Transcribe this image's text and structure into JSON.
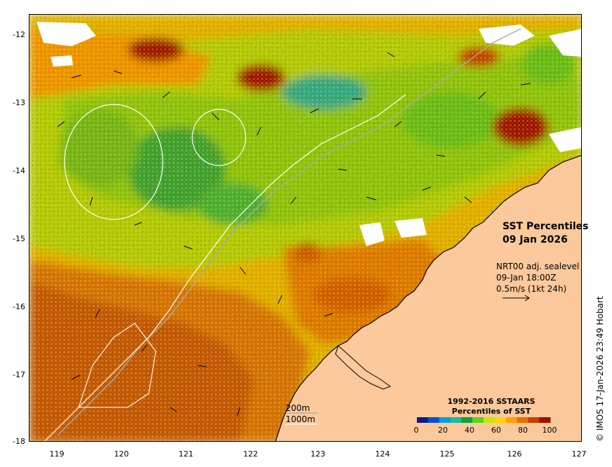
{
  "map": {
    "title_line1": "SST Percentiles",
    "title_line2": "09 Jan 2026",
    "current_info": {
      "line1": "NRT00 adj. sealevel",
      "line2": "09-Jan 18:00Z",
      "line3": "0.5m/s (1kt 24h)"
    },
    "depth_contours": {
      "line1": "200m",
      "line2": "1000m"
    },
    "legend": {
      "title_line1": "1992-2016 SSTAARS",
      "title_line2": "Percentiles of SST",
      "ticks": [
        "0",
        "20",
        "40",
        "60",
        "80",
        "100"
      ],
      "colors": [
        "#0a1a8c",
        "#0050c8",
        "#00a0d8",
        "#20b8a0",
        "#10a040",
        "#60d020",
        "#c8e800",
        "#ffd800",
        "#ffa000",
        "#e87000",
        "#c84000",
        "#a01000"
      ]
    },
    "credit": "© IMOS 17-Jan-2026 23:49 Hobart",
    "y_axis_labels": [
      "-12",
      "-13",
      "-14",
      "-15",
      "-16",
      "-17",
      "-18"
    ],
    "x_axis_labels": [
      "119",
      "120",
      "121",
      "122",
      "123",
      "124",
      "125",
      "126",
      "127"
    ],
    "land_color": "#fbc99b",
    "nodata_color": "#ffffff"
  }
}
